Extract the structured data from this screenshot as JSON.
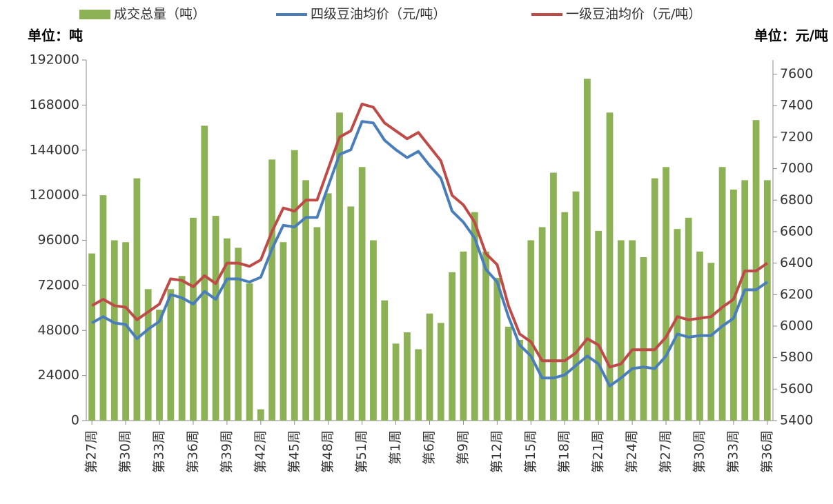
{
  "chart_data": {
    "type": "bar-line",
    "legend": "top",
    "left_unit": "单位：吨",
    "right_unit": "单位：元/吨",
    "categories": [
      "第27周",
      null,
      null,
      "第30周",
      null,
      null,
      "第33周",
      null,
      null,
      "第36周",
      null,
      null,
      "第39周",
      null,
      null,
      "第42周",
      null,
      null,
      "第45周",
      null,
      null,
      "第48周",
      null,
      null,
      "第51周",
      null,
      null,
      "第1周",
      null,
      null,
      "第6周",
      null,
      null,
      "第9周",
      null,
      null,
      "第12周",
      null,
      null,
      "第15周",
      null,
      null,
      "第18周",
      null,
      null,
      "第21周",
      null,
      null,
      "第24周",
      null,
      null,
      "第27周",
      null,
      null,
      "第30周",
      null,
      null,
      "第33周",
      null,
      null,
      "第36周"
    ],
    "series": [
      {
        "name": "成交总量（吨）",
        "kind": "bar",
        "color": "#8db256",
        "values": [
          89000,
          120000,
          96000,
          95000,
          129000,
          70000,
          59000,
          70000,
          77000,
          108000,
          157000,
          109000,
          97000,
          92000,
          73000,
          6000,
          139000,
          95000,
          144000,
          128000,
          103000,
          121000,
          164000,
          114000,
          135000,
          96000,
          64000,
          41000,
          47000,
          38000,
          57000,
          52000,
          79000,
          90000,
          111000,
          90000,
          76000,
          50000,
          43000,
          96000,
          103000,
          132000,
          111000,
          122000,
          182000,
          101000,
          164000,
          96000,
          96000,
          87000,
          129000,
          135000,
          102000,
          108000,
          90000,
          84000,
          135000,
          123000,
          128000,
          160000,
          128000
        ]
      },
      {
        "name": "四级豆油均价（元/吨）",
        "kind": "line",
        "axis": "y2",
        "color": "#4a7ebb",
        "values": [
          6020,
          6060,
          6020,
          6010,
          5920,
          5980,
          6030,
          6200,
          6180,
          6140,
          6220,
          6170,
          6300,
          6300,
          6280,
          6310,
          6490,
          6640,
          6630,
          6690,
          6690,
          6890,
          7090,
          7120,
          7300,
          7290,
          7180,
          7120,
          7070,
          7110,
          7020,
          6940,
          6730,
          6660,
          6560,
          6360,
          6280,
          6060,
          5880,
          5810,
          5670,
          5670,
          5690,
          5750,
          5810,
          5760,
          5620,
          5670,
          5730,
          5740,
          5730,
          5810,
          5950,
          5930,
          5940,
          5940,
          6000,
          6050,
          6230,
          6230,
          6280
        ]
      },
      {
        "name": "一级豆油均价（元/吨）",
        "kind": "line",
        "axis": "y2",
        "color": "#be4b48",
        "values": [
          6130,
          6170,
          6130,
          6120,
          6040,
          6090,
          6140,
          6300,
          6290,
          6250,
          6320,
          6270,
          6400,
          6400,
          6380,
          6420,
          6600,
          6750,
          6730,
          6800,
          6800,
          7000,
          7200,
          7240,
          7410,
          7390,
          7290,
          7240,
          7190,
          7230,
          7140,
          7050,
          6830,
          6770,
          6660,
          6460,
          6390,
          6130,
          5950,
          5900,
          5780,
          5780,
          5780,
          5830,
          5920,
          5880,
          5740,
          5760,
          5850,
          5850,
          5850,
          5930,
          6060,
          6040,
          6050,
          6060,
          6120,
          6170,
          6350,
          6350,
          6400
        ]
      }
    ],
    "ylim": [
      0,
      192000
    ],
    "yticks": [
      0,
      24000,
      48000,
      72000,
      96000,
      120000,
      144000,
      168000,
      192000
    ],
    "y2lim": [
      5400,
      7690
    ],
    "y2ticks": [
      5400,
      5600,
      5800,
      6000,
      6200,
      6400,
      6600,
      6800,
      7000,
      7200,
      7400,
      7600
    ]
  }
}
